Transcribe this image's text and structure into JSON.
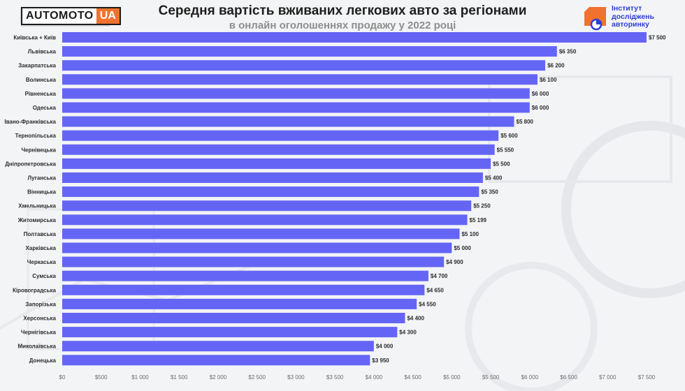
{
  "header": {
    "logo_main": "AUTOMOTO",
    "logo_ua": "UA",
    "title": "Середня вартість вживаних легкових авто за регіонами",
    "subtitle": "в онлайн оголошеннях продажу у 2022 році",
    "institute_text": "Інститут\nдосліджень\nавторинку"
  },
  "colors": {
    "bar": "#6565f5",
    "accent": "#f0722e",
    "institute": "#2c3fd6"
  },
  "chart_data": {
    "type": "bar",
    "orientation": "horizontal",
    "title": "Середня вартість вживаних легкових авто за регіонами",
    "subtitle": "в онлайн оголошеннях продажу у 2022 році",
    "xlabel": "",
    "ylabel": "",
    "xlim": [
      0,
      7500
    ],
    "grid": false,
    "categories": [
      "Київська + Київ",
      "Львівська",
      "Закарпатська",
      "Волинська",
      "Рівненська",
      "Одеська",
      "Івано-Франківська",
      "Тернопільська",
      "Чернівецька",
      "Дніпропетровська",
      "Луганська",
      "Вінницька",
      "Хмельницька",
      "Житомирська",
      "Полтавська",
      "Харківська",
      "Черкаська",
      "Сумська",
      "Кіровоградська",
      "Запорізька",
      "Херсонська",
      "Чернігівська",
      "Миколаївська",
      "Донецька"
    ],
    "values": [
      7500,
      6350,
      6200,
      6100,
      6000,
      6000,
      5800,
      5600,
      5550,
      5500,
      5400,
      5350,
      5250,
      5199,
      5100,
      5000,
      4900,
      4700,
      4650,
      4550,
      4400,
      4300,
      4000,
      3950
    ],
    "value_labels": [
      "$7 500",
      "$6 350",
      "$6 200",
      "$6 100",
      "$6 000",
      "$6 000",
      "$5 800",
      "$5 600",
      "$5 550",
      "$5 500",
      "$5 400",
      "$5 350",
      "$5 250",
      "$5 199",
      "$5 100",
      "$5 000",
      "$4 900",
      "$4 700",
      "$4 650",
      "$4 550",
      "$4 400",
      "$4 300",
      "$4 000",
      "$3 950"
    ],
    "x_ticks": [
      0,
      500,
      1000,
      1500,
      2000,
      2500,
      3000,
      3500,
      4000,
      4500,
      5000,
      5500,
      6000,
      6500,
      7000,
      7500
    ],
    "x_tick_labels": [
      "$0",
      "$500",
      "$1 000",
      "$1 500",
      "$2 000",
      "$2 500",
      "$3 000",
      "$3 500",
      "$4 000",
      "$4 500",
      "$5 000",
      "$5 500",
      "$6 000",
      "$6 500",
      "$7 000",
      "$7 500"
    ]
  }
}
